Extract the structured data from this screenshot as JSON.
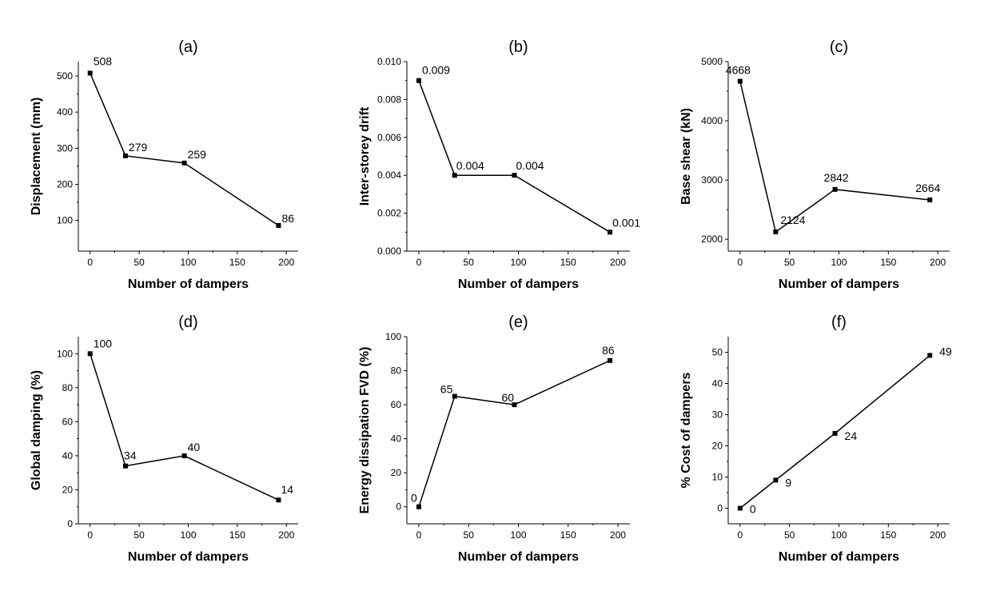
{
  "chart_data": [
    {
      "type": "line",
      "title": "(a)",
      "xlabel": "Number of dampers",
      "ylabel": "Displacement (mm)",
      "xlim": [
        -12,
        212
      ],
      "ylim": [
        15,
        540
      ],
      "xticks": [
        "0",
        "50",
        "100",
        "150",
        "200"
      ],
      "yticks": [
        "100",
        "200",
        "300",
        "400",
        "500"
      ],
      "x": [
        0,
        36,
        96,
        192
      ],
      "values": [
        508,
        279,
        259,
        86
      ],
      "labels": [
        "508",
        "279",
        "259",
        "86"
      ]
    },
    {
      "type": "line",
      "title": "(b)",
      "xlabel": "Number of dampers",
      "ylabel": "Inter-storey drift",
      "xlim": [
        -12,
        212
      ],
      "ylim": [
        0,
        0.01
      ],
      "xticks": [
        "0",
        "50",
        "100",
        "150",
        "200"
      ],
      "yticks": [
        "0.000",
        "0.002",
        "0.004",
        "0.006",
        "0.008",
        "0.010"
      ],
      "x": [
        0,
        36,
        96,
        192
      ],
      "values": [
        0.009,
        0.004,
        0.004,
        0.001
      ],
      "labels": [
        "0.009",
        "0.004",
        "0.004",
        "0.001"
      ]
    },
    {
      "type": "line",
      "title": "(c)",
      "xlabel": "Number of dampers",
      "ylabel": "Base shear (kN)",
      "xlim": [
        -12,
        212
      ],
      "ylim": [
        1800,
        5000
      ],
      "xticks": [
        "0",
        "50",
        "100",
        "150",
        "200"
      ],
      "yticks": [
        "2000",
        "3000",
        "4000",
        "5000"
      ],
      "x": [
        0,
        36,
        96,
        192
      ],
      "values": [
        4668,
        2124,
        2842,
        2664
      ],
      "labels": [
        "4668",
        "2124",
        "2842",
        "2664"
      ]
    },
    {
      "type": "line",
      "title": "(d)",
      "xlabel": "Number of dampers",
      "ylabel": "Global damping (%)",
      "xlim": [
        -12,
        212
      ],
      "ylim": [
        0,
        110
      ],
      "xticks": [
        "0",
        "50",
        "100",
        "150",
        "200"
      ],
      "yticks": [
        "0",
        "20",
        "40",
        "60",
        "80",
        "100"
      ],
      "x": [
        0,
        36,
        96,
        192
      ],
      "values": [
        100,
        34,
        40,
        14
      ],
      "labels": [
        "100",
        "34",
        "40",
        "14"
      ]
    },
    {
      "type": "line",
      "title": "(e)",
      "xlabel": "Number of dampers",
      "ylabel": "Energy dissipation FVD (%)",
      "xlim": [
        -12,
        212
      ],
      "ylim": [
        -10,
        100
      ],
      "xticks": [
        "0",
        "50",
        "100",
        "150",
        "200"
      ],
      "yticks": [
        "0",
        "20",
        "40",
        "60",
        "80",
        "100"
      ],
      "x": [
        0,
        36,
        96,
        192
      ],
      "values": [
        0,
        65,
        60,
        86
      ],
      "labels": [
        "0",
        "65",
        "60",
        "86"
      ]
    },
    {
      "type": "line",
      "title": "(f)",
      "xlabel": "Number of dampers",
      "ylabel": "% Cost of dampers",
      "xlim": [
        -12,
        212
      ],
      "ylim": [
        -5,
        55
      ],
      "xticks": [
        "0",
        "50",
        "100",
        "150",
        "200"
      ],
      "yticks": [
        "0",
        "10",
        "20",
        "30",
        "40",
        "50"
      ],
      "x": [
        0,
        36,
        96,
        192
      ],
      "values": [
        0,
        9,
        24,
        49
      ],
      "labels": [
        "0",
        "9",
        "24",
        "49"
      ]
    }
  ]
}
